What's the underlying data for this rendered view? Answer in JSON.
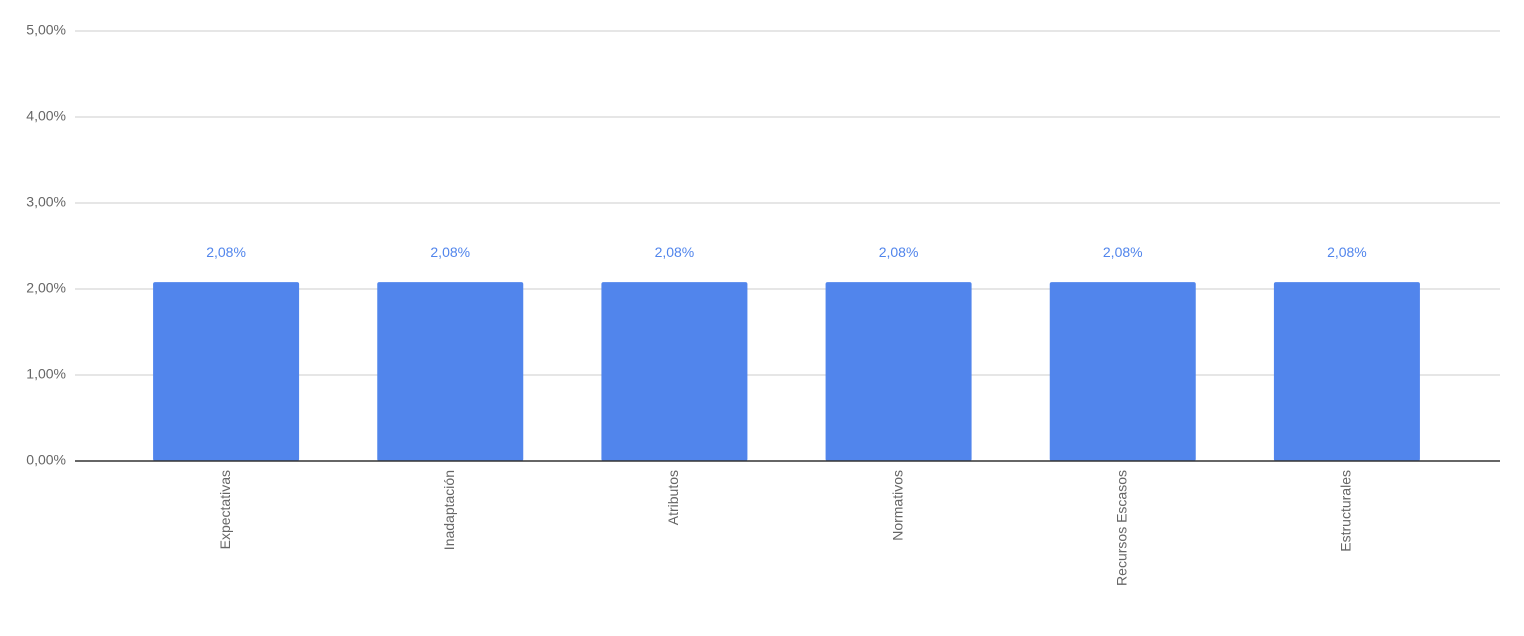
{
  "chart_data": {
    "type": "bar",
    "categories": [
      "Expectativas",
      "Inadaptación",
      "Atributos",
      "Normativos",
      "Recursos Escasos",
      "Estructurales"
    ],
    "values": [
      2.08,
      2.08,
      2.08,
      2.08,
      2.08,
      2.08
    ],
    "value_labels": [
      "2,08%",
      "2,08%",
      "2,08%",
      "2,08%",
      "2,08%",
      "2,08%"
    ],
    "color": "#5185ec",
    "ylim": [
      0,
      5
    ],
    "yticks": [
      {
        "value": 0,
        "label": "0,00%"
      },
      {
        "value": 1,
        "label": "1,00%"
      },
      {
        "value": 2,
        "label": "2,00%"
      },
      {
        "value": 3,
        "label": "3,00%"
      },
      {
        "value": 4,
        "label": "4,00%"
      },
      {
        "value": 5,
        "label": "5,00%"
      }
    ],
    "grid": true
  }
}
